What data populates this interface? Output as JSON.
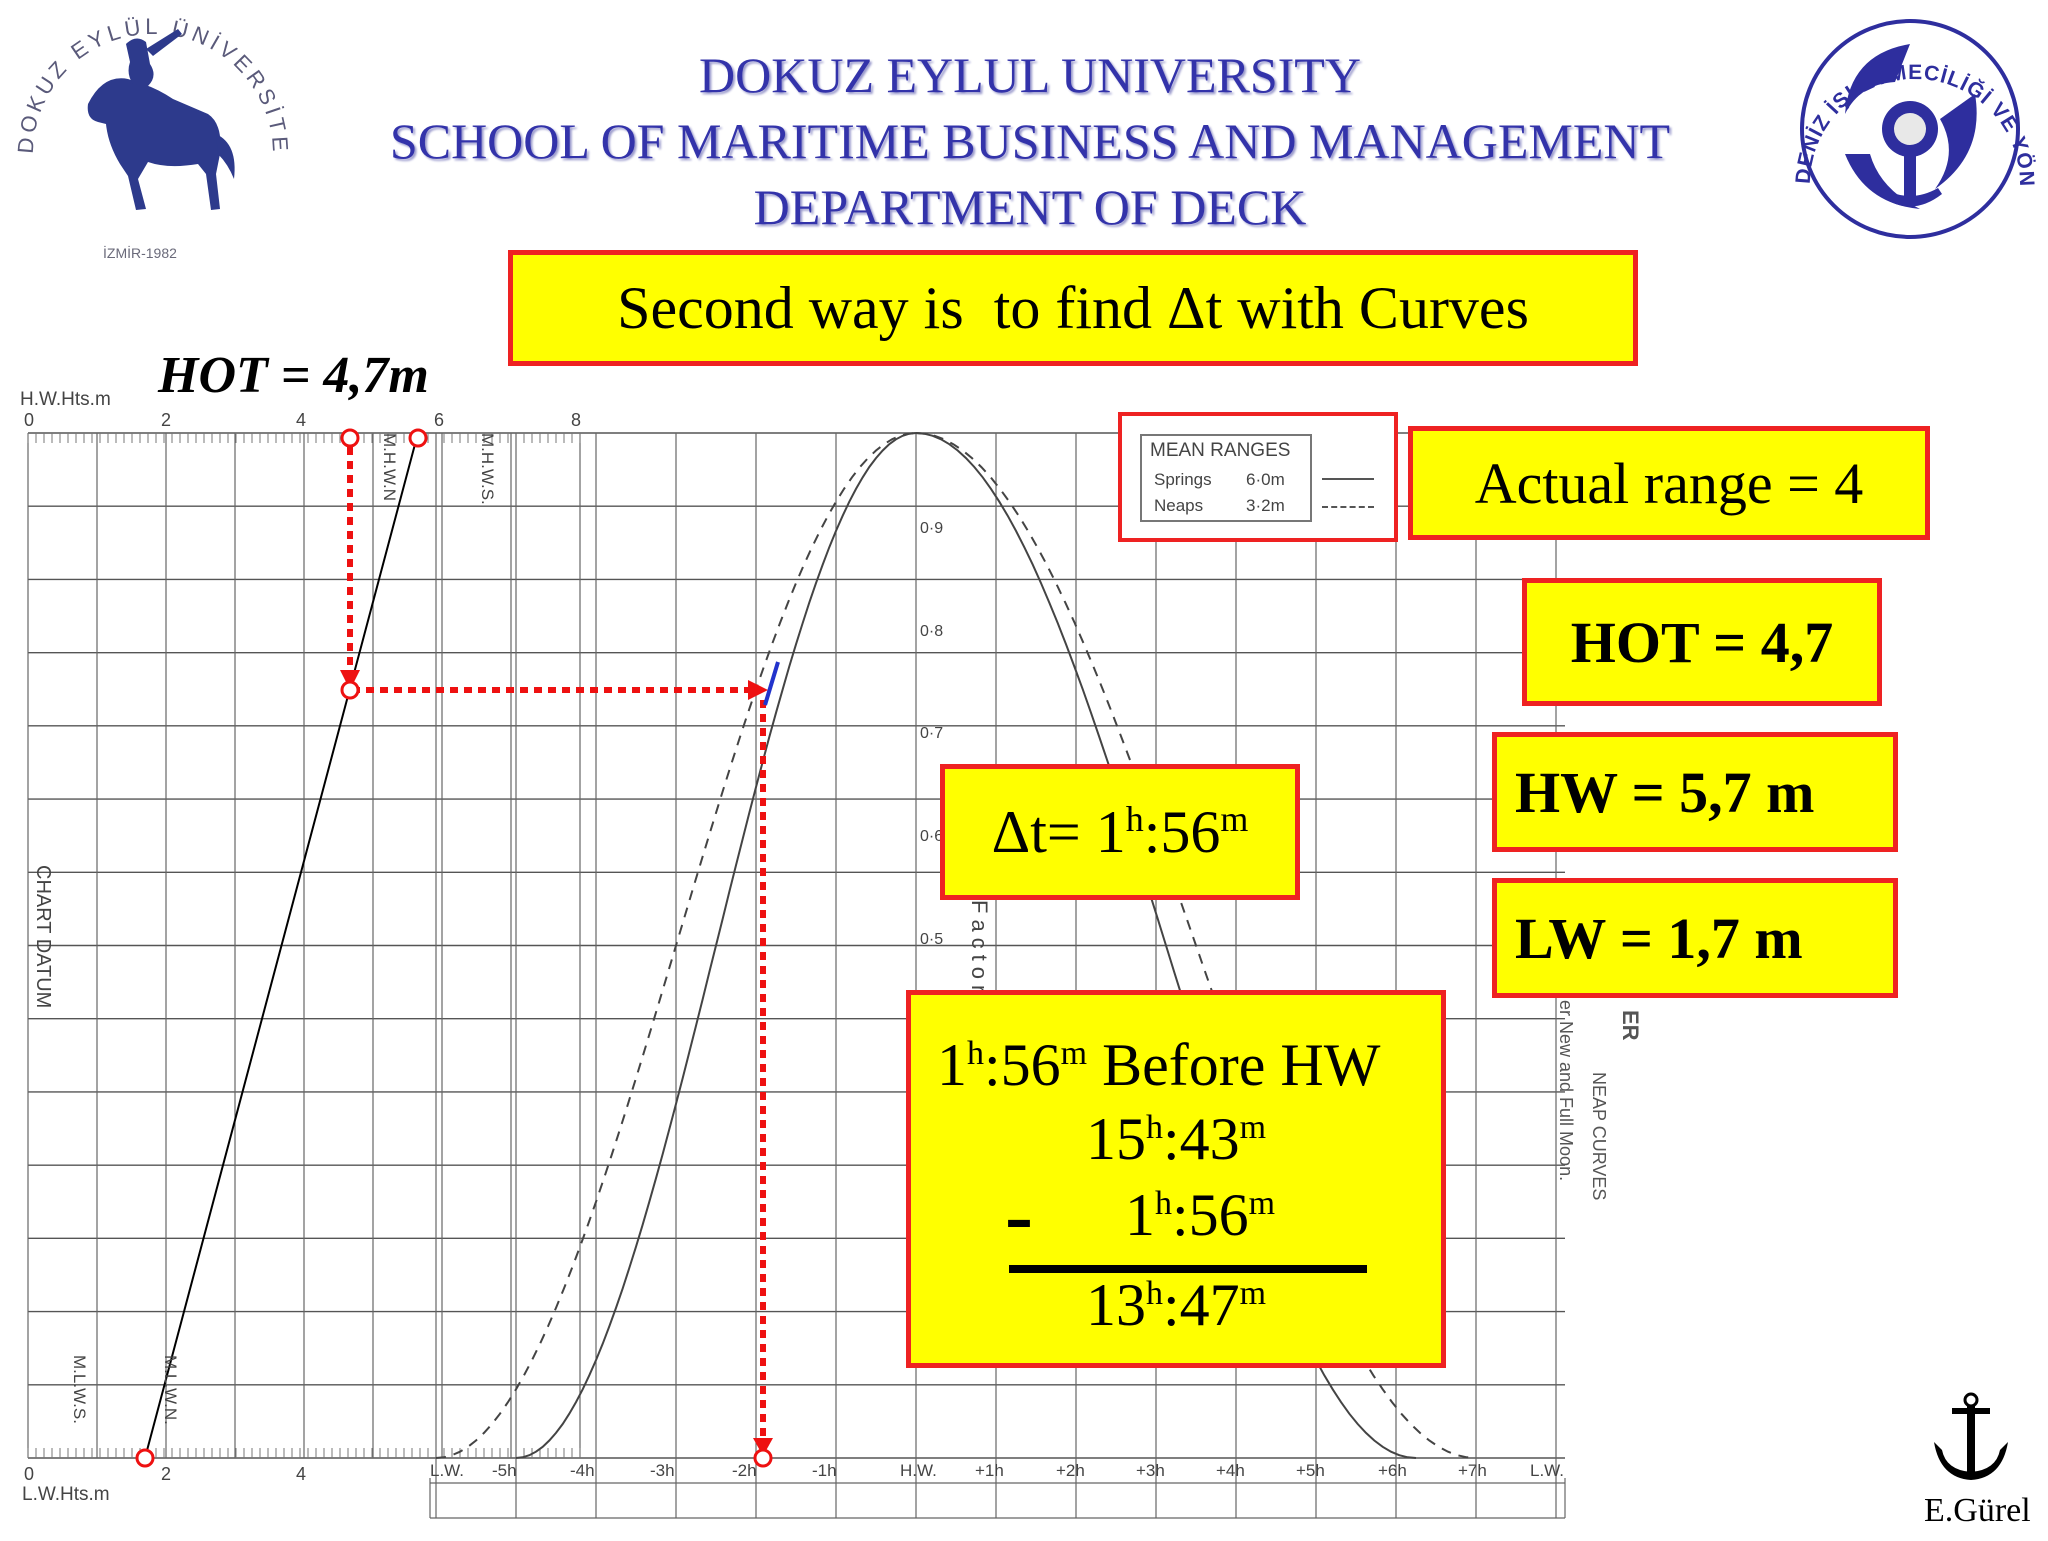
{
  "header": {
    "line1": "DOKUZ EYLUL UNIVERSITY",
    "line2": "SCHOOL OF MARITIME BUSINESS AND MANAGEMENT",
    "line3": "DEPARTMENT OF DECK"
  },
  "left_logo": {
    "ring_text": "DOKUZ EYLÜL ÜNİVERSİTESİ",
    "year": "İZMİR-1982"
  },
  "right_logo": {
    "ring_text": "DENİZ İŞLETMECİLİĞİ VE YÖNETİMİ YÜKSEKOKULU"
  },
  "title_box": "Second way is  to find Δt with Curves",
  "hot_label": "HOT = 4,7m",
  "legend": {
    "title": "MEAN RANGES",
    "springs": "Springs",
    "springs_value": "6·0m",
    "neaps": "Neaps",
    "neaps_value": "3·2m"
  },
  "boxes": {
    "actual_range": "Actual range = 4",
    "hot": "HOT = 4,7",
    "hw": "HW = 5,7 m",
    "lw": "LW = 1,7 m"
  },
  "delta_t": {
    "prefix": "Δt= 1",
    "h": "h",
    "mid": ":56",
    "m": "m"
  },
  "calc": {
    "row1_num1": "1",
    "row1_num2": ":56",
    "row1_suffix": " Before HW",
    "row2_num1": "15",
    "row2_num2": ":43",
    "minus": "-",
    "row3_num1": "1",
    "row3_num2": ":56",
    "row4_num1": "13",
    "row4_num2": ":47",
    "h": "h",
    "m": "m"
  },
  "chart": {
    "top_axis_label": "H.W.Hts.m",
    "bottom_axis_label": "L.W.Hts.m",
    "top_ticks": [
      "0",
      "2",
      "4",
      "6",
      "8"
    ],
    "bottom_ticks": [
      "0",
      "2",
      "4"
    ],
    "chart_datum": "CHART DATUM",
    "mhwn": "M.H.W.N",
    "mhws": "M.H.W.S.",
    "mlws": "M.L.W.S.",
    "mlwn": "M.L.W.N.",
    "factor_ticks": [
      "0·9",
      "0·8",
      "0·7",
      "0·6",
      "0·5"
    ],
    "factor_label": "Factor",
    "time_ticks": [
      "L.W.",
      "-5h",
      "-4h",
      "-3h",
      "-2h",
      "-1h",
      "H.W.",
      "+1h",
      "+2h",
      "+3h",
      "+4h",
      "+5h",
      "+6h",
      "+7h",
      "L.W."
    ],
    "side_text_1": "ER",
    "side_text_2": "NEAP CURVES",
    "side_text_3": "er New and Full Moon."
  },
  "author": "E.Gürel",
  "colors": {
    "header": "#3333aa",
    "box_fill": "#ffff00",
    "box_border": "#ee2222",
    "construction": "#ee1111",
    "marker": "#2233cc"
  }
}
